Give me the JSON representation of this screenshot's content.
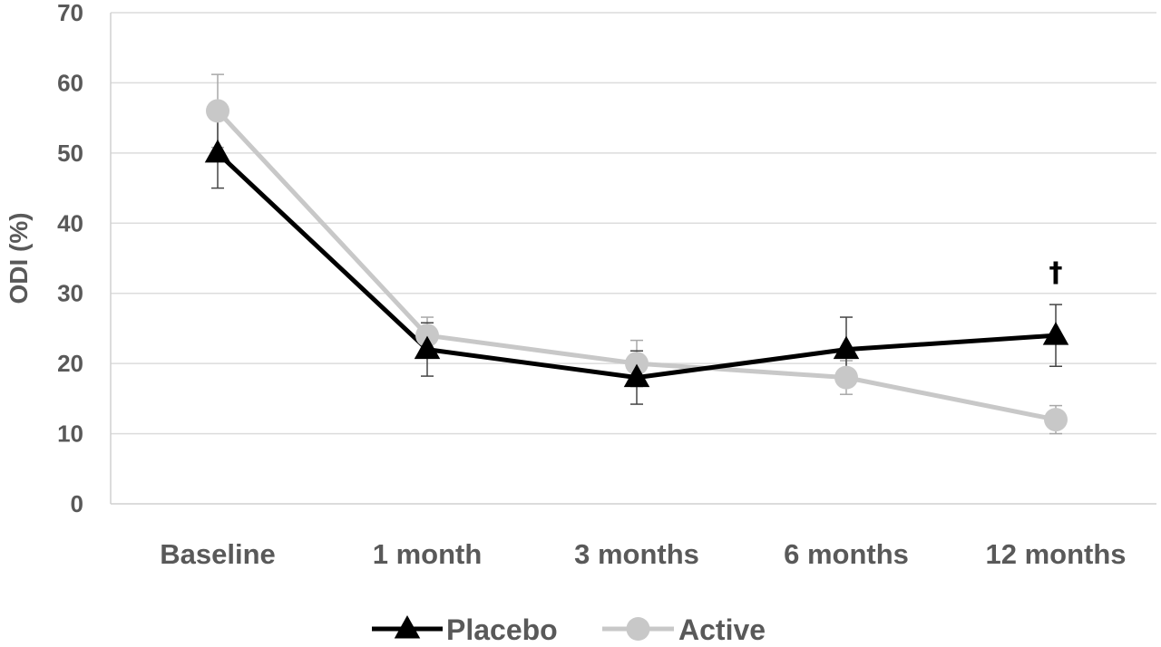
{
  "chart_data": {
    "type": "line",
    "title": "",
    "xlabel": "",
    "ylabel": "ODI (%)",
    "categories": [
      "Baseline",
      "1 month",
      "3 months",
      "6 months",
      "12 months"
    ],
    "ylim": [
      0,
      70
    ],
    "yticks": [
      0,
      10,
      20,
      30,
      40,
      50,
      60,
      70
    ],
    "grid": "horizontal",
    "legend_position": "bottom",
    "series": [
      {
        "name": "Placebo",
        "color": "#000000",
        "marker": "triangle",
        "values": [
          50,
          22,
          18,
          22,
          24
        ],
        "error": [
          5,
          3.8,
          3.8,
          4.6,
          4.4
        ]
      },
      {
        "name": "Active",
        "color": "#c8c8c8",
        "marker": "circle",
        "values": [
          56,
          24,
          20,
          18,
          12
        ],
        "error": [
          5.2,
          2.6,
          3.3,
          2.4,
          2
        ]
      }
    ],
    "annotations": [
      {
        "text": "†",
        "category": "12 months",
        "y": 33
      }
    ]
  }
}
